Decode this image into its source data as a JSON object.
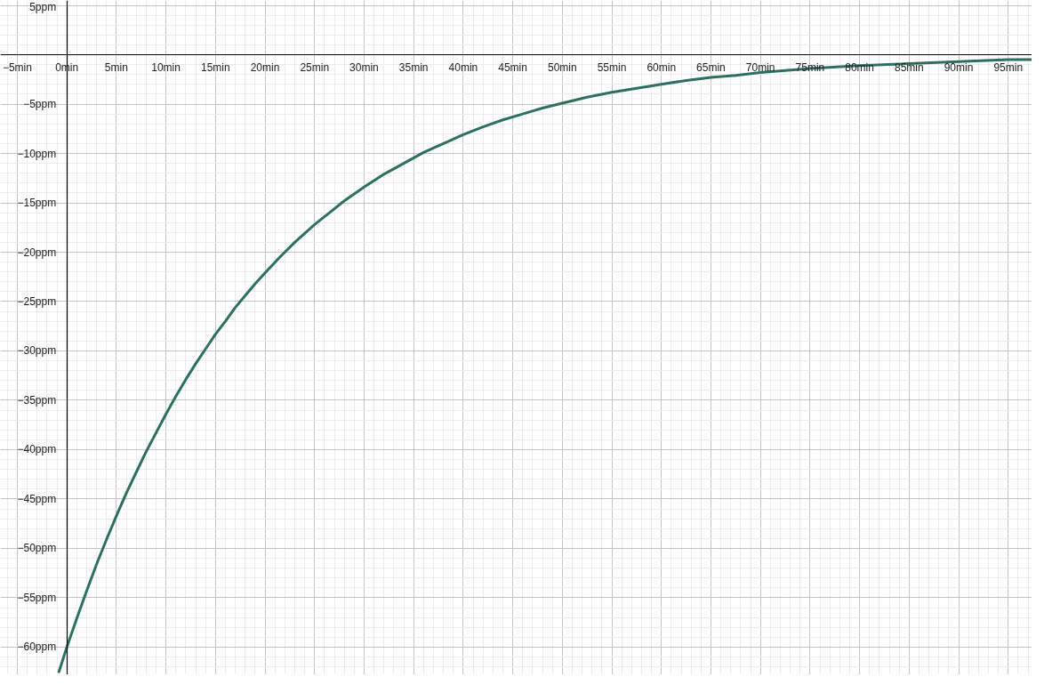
{
  "chart_data": {
    "type": "line",
    "x": [
      -0.8,
      0,
      1,
      2,
      3,
      4,
      5,
      6,
      7,
      8,
      9,
      10,
      11,
      12,
      13,
      14,
      15,
      16,
      17,
      18,
      19,
      20,
      21.5,
      23,
      25,
      26,
      28,
      30,
      32,
      34,
      36,
      38,
      40,
      42,
      44,
      46,
      48,
      50,
      52.5,
      55,
      57.5,
      60,
      62.5,
      65,
      67.5,
      70,
      75,
      80,
      85,
      90,
      95,
      97.4
    ],
    "series": [
      {
        "color": "#2d6f62",
        "values": [
          -62.5,
          -60,
          -57.1,
          -54.3,
          -51.6,
          -49.1,
          -46.7,
          -44.4,
          -42.3,
          -40.2,
          -38.3,
          -36.4,
          -34.6,
          -32.9,
          -31.3,
          -29.8,
          -28.3,
          -27.0,
          -25.6,
          -24.4,
          -23.2,
          -22.1,
          -20.5,
          -19.0,
          -17.2,
          -16.4,
          -14.8,
          -13.4,
          -12.1,
          -11.0,
          -9.9,
          -9.0,
          -8.1,
          -7.3,
          -6.6,
          -6.0,
          -5.4,
          -4.9,
          -4.3,
          -3.8,
          -3.4,
          -3.0,
          -2.6,
          -2.3,
          -2.1,
          -1.8,
          -1.4,
          -1.1,
          -0.9,
          -0.7,
          -0.5,
          -0.5
        ]
      }
    ],
    "xlim": [
      -6.7,
      97.4
    ],
    "ylim": [
      -62.8,
      5.5
    ],
    "xticks": [
      {
        "value": -5,
        "label": "−5min"
      },
      {
        "value": 0,
        "label": "0min"
      },
      {
        "value": 5,
        "label": "5min"
      },
      {
        "value": 10,
        "label": "10min"
      },
      {
        "value": 15,
        "label": "15min"
      },
      {
        "value": 20,
        "label": "20min"
      },
      {
        "value": 25,
        "label": "25min"
      },
      {
        "value": 30,
        "label": "30min"
      },
      {
        "value": 35,
        "label": "35min"
      },
      {
        "value": 40,
        "label": "40min"
      },
      {
        "value": 45,
        "label": "45min"
      },
      {
        "value": 50,
        "label": "50min"
      },
      {
        "value": 55,
        "label": "55min"
      },
      {
        "value": 60,
        "label": "60min"
      },
      {
        "value": 65,
        "label": "65min"
      },
      {
        "value": 70,
        "label": "70min"
      },
      {
        "value": 75,
        "label": "75min"
      },
      {
        "value": 80,
        "label": "80min"
      },
      {
        "value": 85,
        "label": "85min"
      },
      {
        "value": 90,
        "label": "90min"
      },
      {
        "value": 95,
        "label": "95min"
      }
    ],
    "yticks": [
      {
        "value": 5,
        "label": "5ppm"
      },
      {
        "value": 0,
        "label": null
      },
      {
        "value": -5,
        "label": "−5ppm"
      },
      {
        "value": -10,
        "label": "−10ppm"
      },
      {
        "value": -15,
        "label": "−15ppm"
      },
      {
        "value": -20,
        "label": "−20ppm"
      },
      {
        "value": -25,
        "label": "−25ppm"
      },
      {
        "value": -30,
        "label": "−30ppm"
      },
      {
        "value": -35,
        "label": "−35ppm"
      },
      {
        "value": -40,
        "label": "−40ppm"
      },
      {
        "value": -45,
        "label": "−45ppm"
      },
      {
        "value": -50,
        "label": "−50ppm"
      },
      {
        "value": -55,
        "label": "−55ppm"
      },
      {
        "value": -60,
        "label": "−60ppm"
      }
    ],
    "grid": true,
    "line_style": "solid"
  }
}
